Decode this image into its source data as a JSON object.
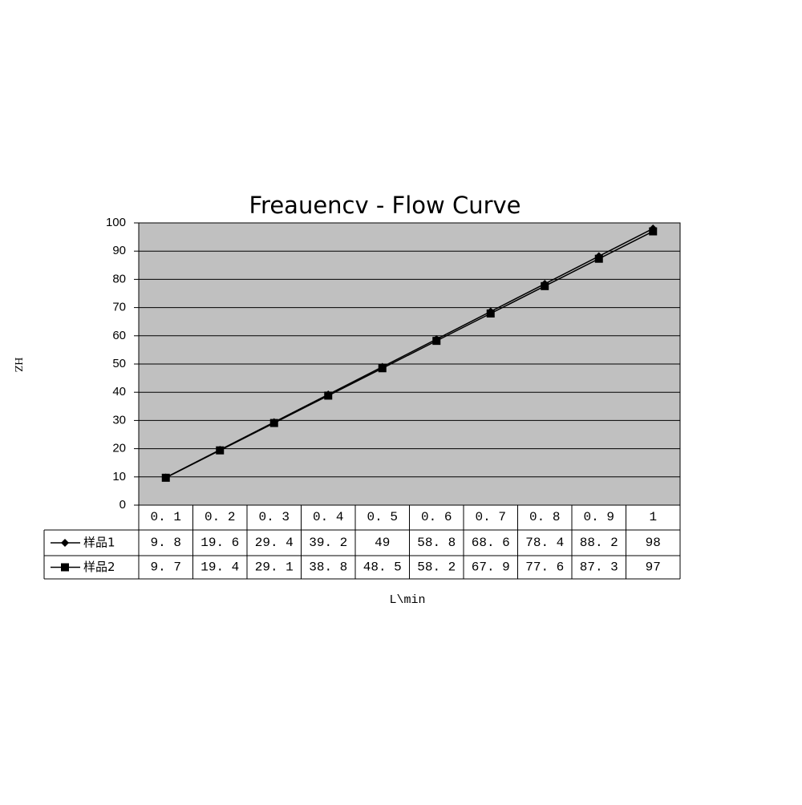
{
  "chart_data": {
    "type": "line",
    "title": "Freauencv - Flow Curve",
    "y_label": "HZ",
    "x_label": "L\\min",
    "categories": [
      "0. 1",
      "0. 2",
      "0. 3",
      "0. 4",
      "0. 5",
      "0. 6",
      "0. 7",
      "0. 8",
      "0. 9",
      "1"
    ],
    "series": [
      {
        "name": "样品1",
        "color": "#000000",
        "marker": "diamond",
        "values": [
          9.8,
          19.6,
          29.4,
          39.2,
          49,
          58.8,
          68.6,
          78.4,
          88.2,
          98
        ],
        "value_labels": [
          "9. 8",
          "19. 6",
          "29. 4",
          "39. 2",
          "49",
          "58. 8",
          "68. 6",
          "78. 4",
          "88. 2",
          "98"
        ]
      },
      {
        "name": "样品2",
        "color": "#000000",
        "marker": "square",
        "values": [
          9.7,
          19.4,
          29.1,
          38.8,
          48.5,
          58.2,
          67.9,
          77.6,
          87.3,
          97
        ],
        "value_labels": [
          "9. 7",
          "19. 4",
          "29. 1",
          "38. 8",
          "48. 5",
          "58. 2",
          "67. 9",
          "77. 6",
          "87. 3",
          "97"
        ]
      }
    ],
    "ylim": [
      0,
      100
    ],
    "yticks": [
      0,
      10,
      20,
      30,
      40,
      50,
      60,
      70,
      80,
      90,
      100
    ],
    "grid": true,
    "plot_background": "#c0c0c0"
  }
}
